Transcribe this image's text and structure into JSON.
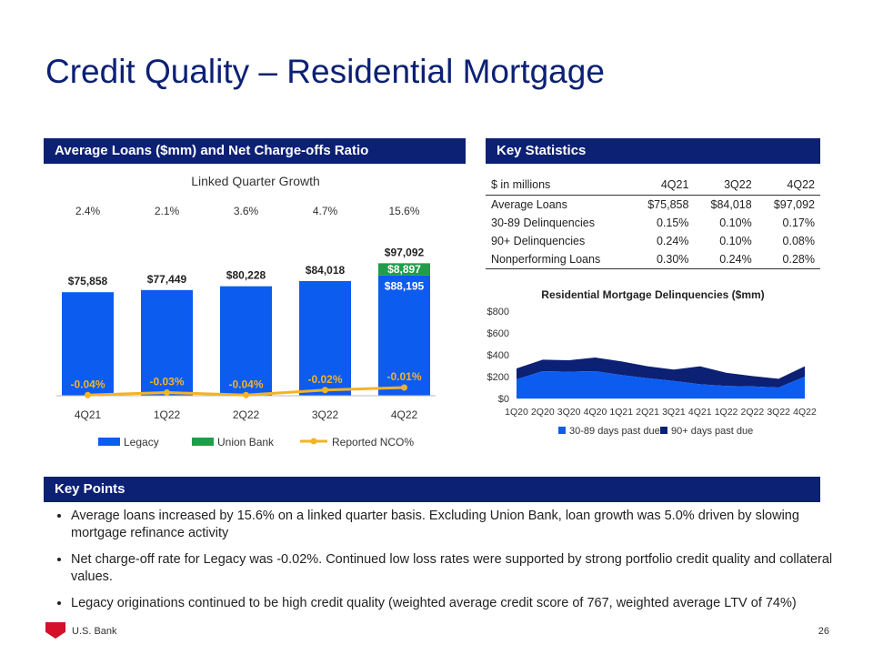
{
  "title": "Credit Quality – Residential Mortgage",
  "left_header": "Average Loans ($mm) and Net Charge-offs Ratio",
  "right_header": "Key Statistics",
  "points_header": "Key Points",
  "chart_data": [
    {
      "type": "bar",
      "title": "Linked Quarter Growth",
      "categories": [
        "4Q21",
        "1Q22",
        "2Q22",
        "3Q22",
        "4Q22"
      ],
      "growth_labels": [
        "2.4%",
        "2.1%",
        "3.6%",
        "4.7%",
        "15.6%"
      ],
      "series": [
        {
          "name": "Legacy",
          "values": [
            75858,
            77449,
            80228,
            84018,
            88195
          ],
          "color": "#0c5cf0",
          "labels": [
            "$75,858",
            "$77,449",
            "$80,228",
            "$84,018",
            "$88,195"
          ]
        },
        {
          "name": "Union Bank",
          "values": [
            0,
            0,
            0,
            0,
            8897
          ],
          "color": "#1f9e4a",
          "labels": [
            "",
            "",
            "",
            "",
            "$8,897"
          ]
        },
        {
          "name": "Reported NCO%",
          "type": "line",
          "values": [
            -0.04,
            -0.03,
            -0.04,
            -0.02,
            -0.01
          ],
          "color": "#f4b324",
          "labels": [
            "-0.04%",
            "-0.03%",
            "-0.04%",
            "-0.02%",
            "-0.01%"
          ]
        }
      ],
      "total_labels": [
        "",
        "",
        "",
        "",
        "$97,092"
      ],
      "ylim": [
        0,
        100000
      ],
      "legend": [
        "Legacy",
        "Union Bank",
        "Reported NCO%"
      ]
    },
    {
      "type": "area",
      "title": "Residential Mortgage Delinquencies ($mm)",
      "x": [
        "1Q20",
        "2Q20",
        "3Q20",
        "4Q20",
        "1Q21",
        "2Q21",
        "3Q21",
        "4Q21",
        "1Q22",
        "2Q22",
        "3Q22",
        "4Q22"
      ],
      "series": [
        {
          "name": "30-89 days past due",
          "color": "#0c5cf0",
          "values": [
            175,
            250,
            245,
            250,
            215,
            185,
            160,
            130,
            115,
            110,
            100,
            200
          ]
        },
        {
          "name": "90+ days past due",
          "color": "#0c2074",
          "values": [
            100,
            105,
            105,
            125,
            125,
            110,
            105,
            165,
            120,
            95,
            80,
            95
          ]
        }
      ],
      "ylim": [
        0,
        800
      ],
      "ytick_labels": [
        "$0",
        "$200",
        "$400",
        "$600",
        "$800"
      ],
      "ytick_values": [
        0,
        200,
        400,
        600,
        800
      ]
    }
  ],
  "stats": {
    "columns": [
      "$ in millions",
      "4Q21",
      "3Q22",
      "4Q22"
    ],
    "rows": [
      [
        "Average Loans",
        "$75,858",
        "$84,018",
        "$97,092"
      ],
      [
        "30-89 Delinquencies",
        "0.15%",
        "0.10%",
        "0.17%"
      ],
      [
        "90+ Delinquencies",
        "0.24%",
        "0.10%",
        "0.08%"
      ],
      [
        "Nonperforming Loans",
        "0.30%",
        "0.24%",
        "0.28%"
      ]
    ]
  },
  "points": [
    "Average loans increased by 15.6% on a linked quarter basis. Excluding Union Bank, loan growth was 5.0% driven by slowing mortgage refinance activity",
    "Net charge-off rate for Legacy was -0.02%.  Continued low loss rates were supported by strong portfolio credit quality and collateral values.",
    "Legacy originations continued to be high credit quality (weighted average credit score of 767, weighted average LTV of 74%)"
  ],
  "footer": {
    "brand": "U.S. Bank",
    "page": "26"
  },
  "colors": {
    "navy": "#0c2074",
    "blue": "#0c5cf0",
    "green": "#1f9e4a",
    "gold": "#f4b324"
  }
}
